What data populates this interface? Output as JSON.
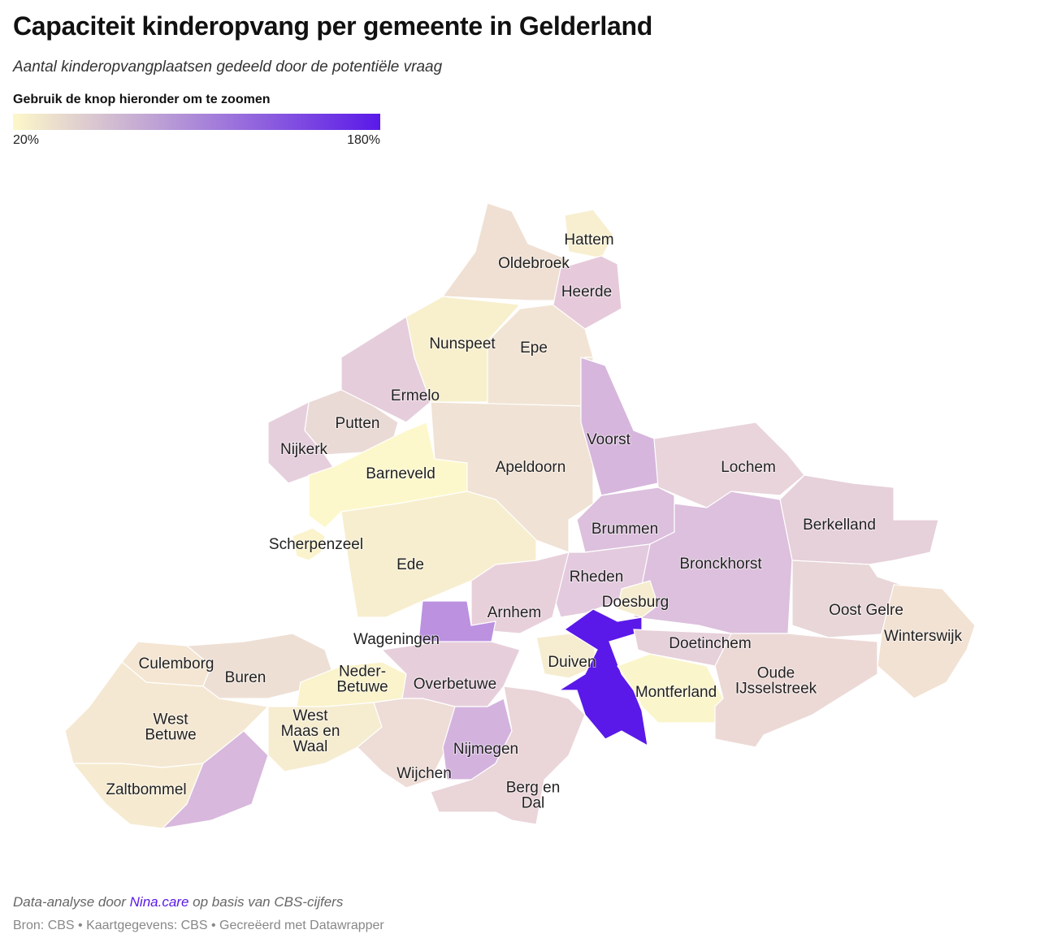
{
  "header": {
    "title": "Capaciteit kinderopvang per gemeente in Gelderland",
    "subtitle": "Aantal kinderopvangplaatsen gedeeld door de potentiële vraag",
    "legend_title": "Gebruik de knop hieronder om te zoomen"
  },
  "legend": {
    "min_label": "20%",
    "max_label": "180%",
    "min_color": "#fdf8c9",
    "max_color": "#5a19e8"
  },
  "regions": [
    {
      "label": [
        "Hattem"
      ],
      "color": "#f7efcf"
    },
    {
      "label": [
        "Oldebroek"
      ],
      "color": "#efe0d3"
    },
    {
      "label": [
        "Heerde"
      ],
      "color": "#e6cadb"
    },
    {
      "label": [
        "Epe"
      ],
      "color": "#f2e4d4"
    },
    {
      "label": [
        "Nunspeet"
      ],
      "color": "#f8efcd"
    },
    {
      "label": [
        "Ermelo"
      ],
      "color": "#e6cddb"
    },
    {
      "label": [
        "Putten"
      ],
      "color": "#eadad6"
    },
    {
      "label": [
        "Nijkerk"
      ],
      "color": "#e6cfdc"
    },
    {
      "label": [
        "Barneveld"
      ],
      "color": "#fdf8cb"
    },
    {
      "label": [
        "Apeldoorn"
      ],
      "color": "#f0e2d4"
    },
    {
      "label": [
        "Voorst"
      ],
      "color": "#d7b6dd"
    },
    {
      "label": [
        "Lochem"
      ],
      "color": "#e8d4da"
    },
    {
      "label": [
        "Berkelland"
      ],
      "color": "#e6d0da"
    },
    {
      "label": [
        "Brummen"
      ],
      "color": "#dcc0dd"
    },
    {
      "label": [
        "Bronckhorst"
      ],
      "color": "#dcc0dd"
    },
    {
      "label": [
        "Rheden"
      ],
      "color": "#e3cade"
    },
    {
      "label": [
        "Doesburg"
      ],
      "color": "#f6edd0"
    },
    {
      "label": [
        "Arnhem"
      ],
      "color": "#e8d0db"
    },
    {
      "label": [
        "Wageningen"
      ],
      "color": "#bb91e0"
    },
    {
      "label": [
        "Scherpenzeel"
      ],
      "color": "#faf3cc"
    },
    {
      "label": [
        "Ede"
      ],
      "color": "#f7eecf"
    },
    {
      "label": [
        "Duiven"
      ],
      "color": "#f6edd0"
    },
    {
      "label": null,
      "color": "#5a19e8"
    },
    {
      "label": [
        "Montferland"
      ],
      "color": "#fbf5cb"
    },
    {
      "label": [
        "Doetinchem"
      ],
      "color": "#e6d0da"
    },
    {
      "label": [
        "Oost Gelre"
      ],
      "color": "#e8d6d8"
    },
    {
      "label": [
        "Winterswijk"
      ],
      "color": "#f2e2d3"
    },
    {
      "label": [
        "Oude",
        "IJsselstreek"
      ],
      "color": "#ecd9d6"
    },
    {
      "label": [
        "Culemborg"
      ],
      "color": "#f4e6d2"
    },
    {
      "label": [
        "Buren"
      ],
      "color": "#eedfd5"
    },
    {
      "label": [
        "Neder-",
        "Betuwe"
      ],
      "color": "#faf3cb"
    },
    {
      "label": [
        "Overbetuwe"
      ],
      "color": "#e6cfdb"
    },
    {
      "label": [
        "West",
        "Betuwe"
      ],
      "color": "#f5e8d2"
    },
    {
      "label": [
        "West",
        "Maas en",
        "Waal"
      ],
      "color": "#f6ecd0"
    },
    {
      "label": [
        "Wijchen"
      ],
      "color": "#eedcd6"
    },
    {
      "label": [
        "Nijmegen"
      ],
      "color": "#d3b3de"
    },
    {
      "label": [
        "Berg en",
        "Dal"
      ],
      "color": "#ead5d9"
    },
    {
      "label": [
        "Zaltbommel"
      ],
      "color": "#f6ebd0"
    },
    {
      "label": null,
      "color": "#d8b8dc"
    }
  ],
  "footer": {
    "note_before": "Data-analyse door",
    "note_link": "Nina.care",
    "note_after": "op basis van CBS-cijfers",
    "source": "Bron: CBS • Kaartgegevens: CBS • Gecreëerd met Datawrapper"
  }
}
